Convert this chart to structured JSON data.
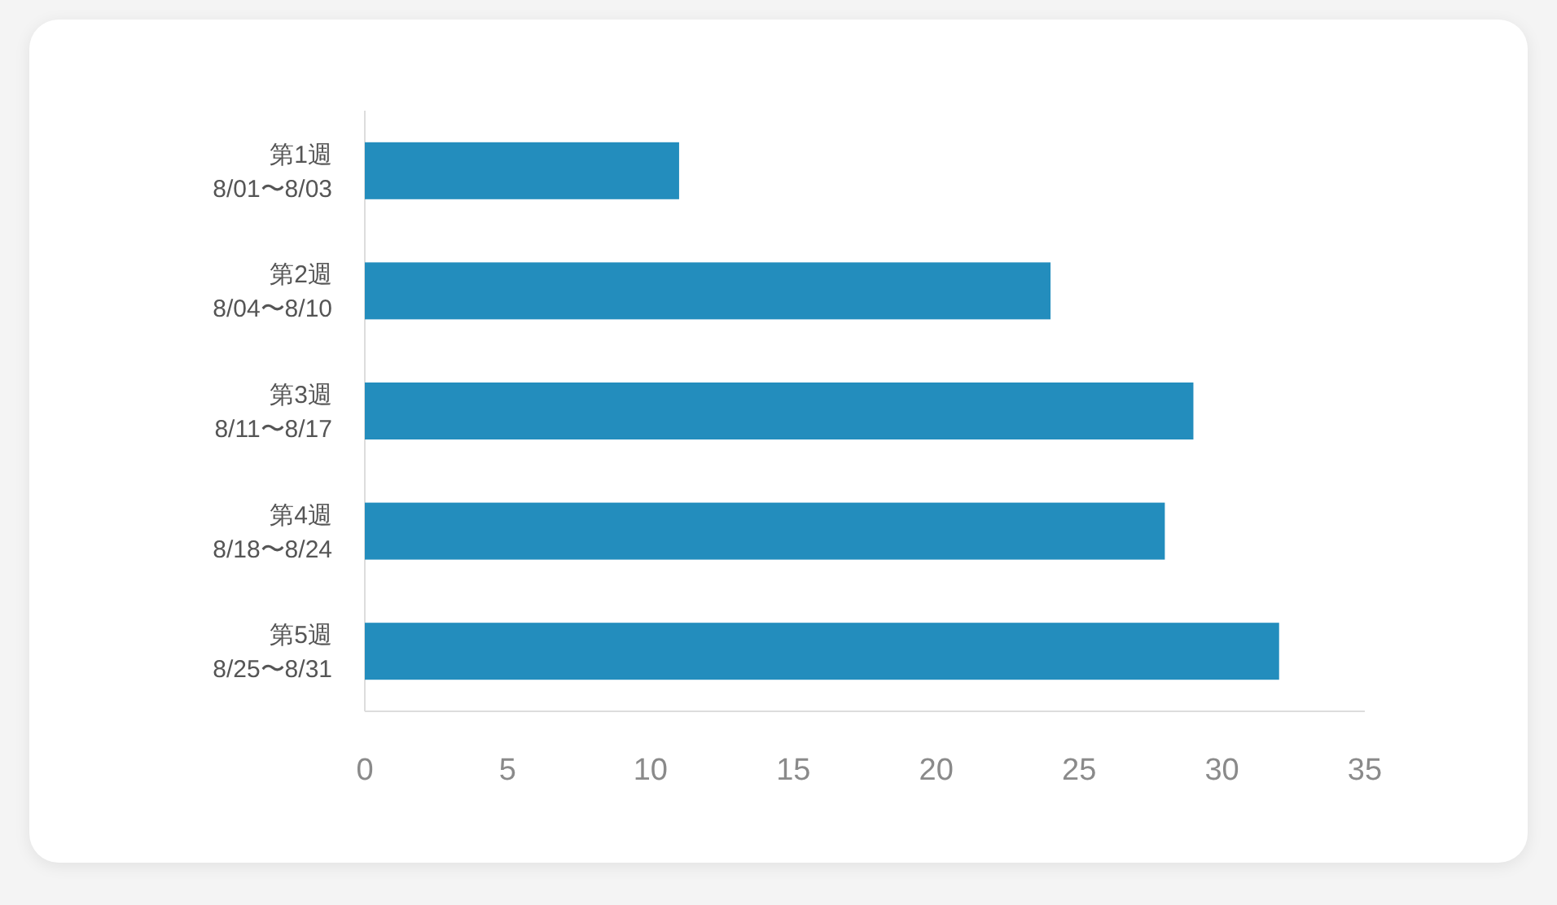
{
  "chart_data": {
    "type": "bar",
    "orientation": "horizontal",
    "categories": [
      "第1週\n8/01〜8/03",
      "第2週\n8/04〜8/10",
      "第3週\n8/11〜8/17",
      "第4週\n8/18〜8/24",
      "第5週\n8/25〜8/31"
    ],
    "values": [
      11,
      24,
      29,
      28,
      32
    ],
    "color": "#238dbd",
    "xlim": [
      0,
      35
    ],
    "xticks": [
      0,
      5,
      10,
      15,
      20,
      25,
      30,
      35
    ],
    "grid": false
  }
}
